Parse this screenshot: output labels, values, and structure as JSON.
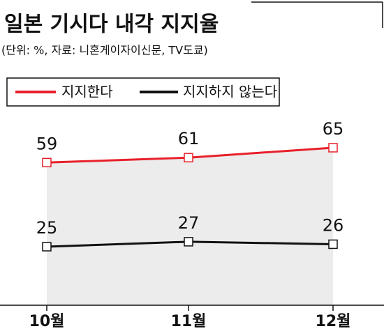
{
  "chart_data": {
    "type": "line",
    "title": "일본 기시다 내각 지지율",
    "subtitle": "(단위: %, 자료: 니혼게이자이신문, TV도쿄)",
    "categories": [
      "10월",
      "11월",
      "12월"
    ],
    "series": [
      {
        "name": "지지한다",
        "color": "#e8202a",
        "values": [
          59,
          61,
          65
        ]
      },
      {
        "name": "지지하지 않는다",
        "color": "#111111",
        "values": [
          25,
          27,
          26
        ]
      }
    ]
  }
}
